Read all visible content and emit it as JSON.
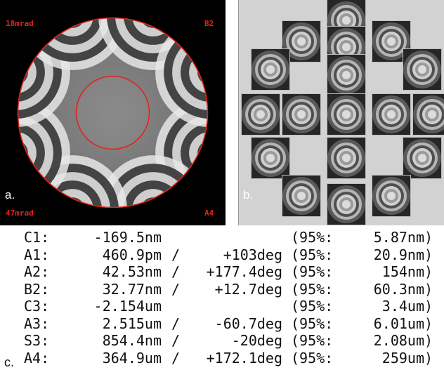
{
  "panel_a": {
    "top_left": "18mrad",
    "top_right": "B2",
    "bottom_left": "47mrad",
    "bottom_right": "A4",
    "panel_letter": "a.",
    "accent_color": "#e0241b"
  },
  "panel_b": {
    "panel_letter": "b."
  },
  "table_letter": "c.",
  "rows": [
    {
      "key": "C1:",
      "magnitude": "-169.5nm",
      "slash": "",
      "angle": "",
      "ci_label": "(95%:",
      "ci_value": "5.87nm",
      "close": ")"
    },
    {
      "key": "A1:",
      "magnitude": "460.9pm",
      "slash": "/",
      "angle": "+103deg",
      "ci_label": "(95%:",
      "ci_value": "20.9nm",
      "close": ")"
    },
    {
      "key": "A2:",
      "magnitude": "42.53nm",
      "slash": "/",
      "angle": "+177.4deg",
      "ci_label": "(95%:",
      "ci_value": "154nm",
      "close": ")"
    },
    {
      "key": "B2:",
      "magnitude": "32.77nm",
      "slash": "/",
      "angle": "+12.7deg",
      "ci_label": "(95%:",
      "ci_value": "60.3nm",
      "close": ")"
    },
    {
      "key": "C3:",
      "magnitude": "-2.154um",
      "slash": "",
      "angle": "",
      "ci_label": "(95%:",
      "ci_value": "3.4um",
      "close": ")"
    },
    {
      "key": "A3:",
      "magnitude": "2.515um",
      "slash": "/",
      "angle": "-60.7deg",
      "ci_label": "(95%:",
      "ci_value": "6.01um",
      "close": ")"
    },
    {
      "key": "S3:",
      "magnitude": "854.4nm",
      "slash": "/",
      "angle": "-20deg",
      "ci_label": "(95%:",
      "ci_value": "2.08um",
      "close": ")"
    },
    {
      "key": "A4:",
      "magnitude": "364.9um",
      "slash": "/",
      "angle": "+172.1deg",
      "ci_label": "(95%:",
      "ci_value": "259um",
      "close": ")"
    }
  ]
}
